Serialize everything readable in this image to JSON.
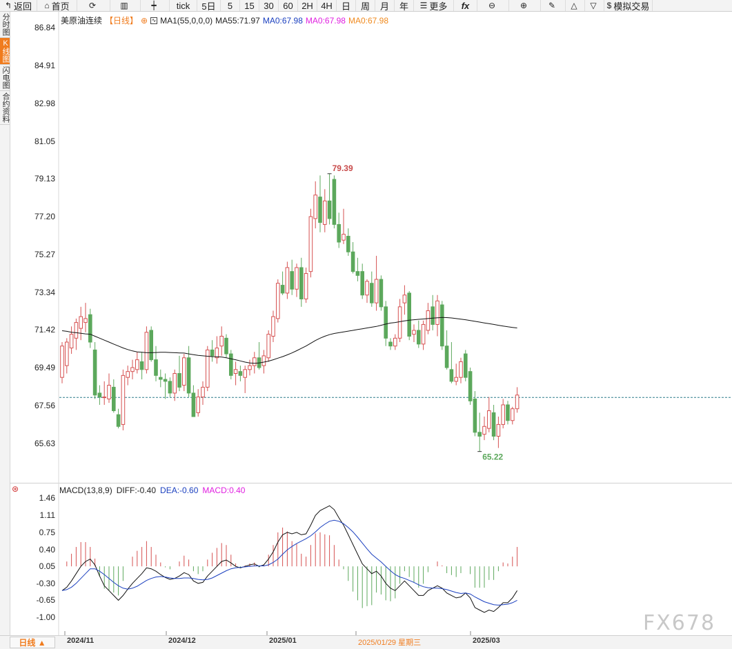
{
  "toolbar": [
    {
      "icon": "↰",
      "label": "返回",
      "name": "back-button",
      "w": 54
    },
    {
      "icon": "⌂",
      "label": "首页",
      "name": "home-button",
      "w": 58
    },
    {
      "icon": "⟳",
      "label": "",
      "name": "refresh-button",
      "w": 48
    },
    {
      "icon": "▥",
      "label": "",
      "name": "bar-chart-button",
      "w": 44
    },
    {
      "icon": "┿",
      "label": "",
      "name": "candlestick-button",
      "w": 42
    },
    {
      "icon": "",
      "label": "tick",
      "name": "period-tick",
      "w": 40
    },
    {
      "icon": "",
      "label": "5日",
      "name": "period-5day",
      "w": 34
    },
    {
      "icon": "",
      "label": "5",
      "name": "period-5min",
      "w": 28
    },
    {
      "icon": "",
      "label": "15",
      "name": "period-15min",
      "w": 28
    },
    {
      "icon": "",
      "label": "30",
      "name": "period-30min",
      "w": 28
    },
    {
      "icon": "",
      "label": "60",
      "name": "period-60min",
      "w": 28
    },
    {
      "icon": "",
      "label": "2H",
      "name": "period-2h",
      "w": 28
    },
    {
      "icon": "",
      "label": "4H",
      "name": "period-4h",
      "w": 28
    },
    {
      "icon": "",
      "label": "日",
      "name": "period-day",
      "w": 28
    },
    {
      "icon": "",
      "label": "周",
      "name": "period-week",
      "w": 28
    },
    {
      "icon": "",
      "label": "月",
      "name": "period-month",
      "w": 28
    },
    {
      "icon": "",
      "label": "年",
      "name": "period-year",
      "w": 28
    },
    {
      "icon": "☰",
      "label": "更多",
      "name": "more-button",
      "w": 58
    },
    {
      "icon": "",
      "label": "fx",
      "name": "formula-button",
      "w": 34
    },
    {
      "icon": "⊖",
      "label": "",
      "name": "zoom-out-button",
      "w": 46
    },
    {
      "icon": "⊕",
      "label": "",
      "name": "zoom-in-button",
      "w": 46
    },
    {
      "icon": "✎",
      "label": "",
      "name": "draw-button",
      "w": 36
    },
    {
      "icon": "△",
      "label": "",
      "name": "triangle-up-button",
      "w": 28
    },
    {
      "icon": "▽",
      "label": "",
      "name": "triangle-down-button",
      "w": 28
    },
    {
      "icon": "$",
      "label": "模拟交易",
      "name": "sim-trade-button",
      "w": 70
    }
  ],
  "sidetabs": [
    {
      "label": "分时图",
      "name": "tab-intraday",
      "active": false
    },
    {
      "label": "K线图",
      "name": "tab-kline",
      "active": true
    },
    {
      "label": "闪电图",
      "name": "tab-flash",
      "active": false
    },
    {
      "label": "合约资料",
      "name": "tab-contract",
      "active": false
    }
  ],
  "legend": {
    "symbol": "美原油连续",
    "period": "【日线】",
    "ma1": "MA1(55,0,0,0)",
    "ma55": "MA55:71.97",
    "ma0a": "MA0:67.98",
    "ma0b": "MA0:67.98",
    "ma0c": "MA0:67.98"
  },
  "macd_legend": {
    "name": "MACD(13,8,9)",
    "diff": "DIFF:-0.40",
    "dea": "DEA:-0.60",
    "macd": "MACD:0.40"
  },
  "bottom": {
    "period_btn": "日线 ▲"
  },
  "xlabels": [
    {
      "text": "2024/11",
      "hl": false
    },
    {
      "text": "2024/12",
      "hl": false
    },
    {
      "text": "2025/01",
      "hl": false
    },
    {
      "text": "2025/01/29  星期三",
      "hl": true
    },
    {
      "text": "2025/03",
      "hl": false
    }
  ],
  "watermark": "FX678",
  "colors": {
    "up": "#d65050",
    "down": "#5ca85c",
    "ma": "#111111",
    "dea": "#1a3fbf",
    "hline": "#2a7a8a",
    "accent": "#f07c1e"
  },
  "chart_data": [
    {
      "type": "candlestick",
      "title": "美原油连续",
      "ylim": [
        64.5,
        87.2
      ],
      "yticks": [
        86.84,
        84.91,
        82.98,
        81.05,
        79.13,
        77.2,
        75.27,
        73.34,
        71.42,
        69.49,
        67.56,
        65.63
      ],
      "last_price": 67.98,
      "high_label": "79.39",
      "low_label": "65.22",
      "ohlc": [
        [
          69.0,
          70.8,
          68.7,
          70.6
        ],
        [
          69.6,
          71.0,
          69.2,
          70.8
        ],
        [
          70.5,
          71.6,
          70.2,
          71.2
        ],
        [
          71.0,
          72.0,
          70.4,
          71.8
        ],
        [
          71.5,
          72.6,
          70.9,
          72.1
        ],
        [
          71.8,
          72.8,
          71.3,
          72.0
        ],
        [
          72.2,
          72.5,
          70.5,
          70.8
        ],
        [
          70.4,
          70.8,
          67.9,
          68.1
        ],
        [
          68.2,
          68.6,
          67.6,
          68.0
        ],
        [
          68.0,
          68.8,
          67.6,
          68.0
        ],
        [
          67.9,
          69.2,
          67.7,
          68.6
        ],
        [
          68.5,
          68.9,
          67.2,
          67.3
        ],
        [
          67.1,
          67.4,
          66.4,
          66.5
        ],
        [
          66.6,
          69.4,
          66.3,
          69.1
        ],
        [
          69.0,
          69.6,
          68.6,
          69.3
        ],
        [
          69.3,
          69.9,
          68.9,
          69.5
        ],
        [
          69.4,
          70.3,
          69.2,
          69.9
        ],
        [
          69.8,
          70.3,
          68.9,
          69.4
        ],
        [
          69.4,
          71.6,
          69.2,
          71.3
        ],
        [
          71.4,
          71.6,
          69.8,
          69.9
        ],
        [
          69.9,
          70.6,
          68.8,
          69.1
        ],
        [
          69.0,
          69.4,
          68.5,
          68.9
        ],
        [
          68.9,
          69.2,
          67.9,
          68.8
        ],
        [
          68.8,
          69.0,
          68.0,
          68.2
        ],
        [
          68.2,
          69.4,
          67.8,
          69.2
        ],
        [
          69.2,
          70.1,
          68.3,
          68.5
        ],
        [
          68.6,
          70.2,
          68.3,
          70.0
        ],
        [
          70.0,
          70.6,
          68.0,
          68.2
        ],
        [
          68.2,
          68.6,
          67.0,
          67.0
        ],
        [
          67.2,
          68.4,
          67.0,
          68.0
        ],
        [
          68.0,
          68.8,
          67.6,
          68.5
        ],
        [
          68.5,
          70.6,
          68.3,
          70.4
        ],
        [
          70.4,
          70.9,
          69.8,
          70.1
        ],
        [
          70.0,
          71.1,
          69.7,
          70.5
        ],
        [
          70.6,
          71.6,
          70.1,
          71.1
        ],
        [
          71.0,
          71.2,
          70.0,
          70.2
        ],
        [
          70.2,
          70.4,
          68.9,
          69.1
        ],
        [
          69.2,
          69.8,
          68.6,
          69.4
        ],
        [
          69.3,
          69.6,
          68.8,
          69.1
        ],
        [
          69.0,
          69.6,
          68.2,
          69.4
        ],
        [
          69.4,
          69.9,
          69.1,
          69.6
        ],
        [
          69.6,
          70.3,
          69.2,
          70.0
        ],
        [
          70.0,
          70.8,
          69.4,
          69.5
        ],
        [
          69.6,
          70.4,
          69.2,
          70.1
        ],
        [
          70.0,
          71.4,
          69.8,
          71.2
        ],
        [
          71.1,
          72.4,
          70.8,
          72.1
        ],
        [
          72.0,
          74.0,
          71.8,
          73.8
        ],
        [
          73.7,
          74.4,
          73.2,
          73.3
        ],
        [
          73.3,
          74.9,
          73.0,
          74.6
        ],
        [
          74.4,
          75.0,
          73.2,
          73.5
        ],
        [
          73.5,
          74.8,
          73.1,
          74.6
        ],
        [
          74.6,
          75.1,
          72.6,
          73.0
        ],
        [
          73.0,
          74.6,
          72.8,
          74.3
        ],
        [
          74.4,
          77.6,
          74.1,
          77.2
        ],
        [
          77.1,
          79.0,
          76.6,
          78.3
        ],
        [
          78.2,
          79.3,
          76.4,
          76.9
        ],
        [
          76.8,
          78.6,
          76.4,
          78.0
        ],
        [
          78.0,
          79.39,
          76.8,
          77.1
        ],
        [
          79.1,
          79.3,
          76.6,
          76.8
        ],
        [
          76.8,
          77.4,
          75.6,
          75.9
        ],
        [
          76.0,
          77.6,
          75.8,
          76.3
        ],
        [
          76.2,
          76.6,
          75.2,
          75.4
        ],
        [
          75.4,
          75.9,
          74.3,
          74.4
        ],
        [
          74.4,
          75.1,
          73.9,
          74.2
        ],
        [
          74.4,
          74.8,
          73.0,
          73.2
        ],
        [
          73.2,
          74.0,
          72.8,
          73.9
        ],
        [
          73.8,
          74.4,
          72.6,
          72.8
        ],
        [
          72.8,
          75.2,
          72.4,
          74.0
        ],
        [
          74.0,
          74.2,
          72.4,
          72.6
        ],
        [
          72.6,
          72.9,
          70.6,
          71.0
        ],
        [
          70.8,
          71.0,
          70.4,
          70.6
        ],
        [
          70.6,
          71.2,
          70.4,
          71.0
        ],
        [
          71.0,
          73.0,
          70.8,
          72.6
        ],
        [
          72.8,
          73.7,
          72.2,
          73.2
        ],
        [
          73.3,
          73.4,
          70.9,
          71.1
        ],
        [
          71.2,
          71.7,
          70.8,
          71.4
        ],
        [
          71.4,
          71.9,
          70.5,
          70.7
        ],
        [
          70.7,
          71.9,
          70.4,
          71.7
        ],
        [
          71.4,
          72.8,
          71.2,
          72.4
        ],
        [
          72.6,
          73.2,
          71.4,
          71.7
        ],
        [
          71.7,
          73.2,
          71.1,
          72.9
        ],
        [
          72.7,
          72.9,
          70.4,
          70.6
        ],
        [
          70.6,
          71.4,
          69.4,
          69.5
        ],
        [
          69.4,
          70.8,
          68.7,
          68.8
        ],
        [
          68.8,
          69.7,
          68.6,
          69.0
        ],
        [
          69.0,
          70.0,
          68.7,
          69.8
        ],
        [
          70.2,
          70.4,
          68.8,
          69.0
        ],
        [
          69.3,
          69.5,
          67.6,
          67.8
        ],
        [
          67.9,
          68.3,
          66.0,
          66.2
        ],
        [
          66.2,
          67.2,
          65.22,
          66.0
        ],
        [
          66.1,
          67.0,
          65.8,
          66.5
        ],
        [
          66.4,
          68.0,
          66.2,
          67.3
        ],
        [
          67.2,
          67.6,
          65.8,
          66.0
        ],
        [
          66.0,
          67.0,
          65.4,
          66.6
        ],
        [
          66.6,
          67.9,
          66.4,
          67.6
        ],
        [
          67.6,
          67.8,
          66.6,
          66.8
        ],
        [
          66.8,
          67.5,
          66.6,
          67.4
        ],
        [
          67.4,
          68.5,
          67.2,
          68.1
        ]
      ],
      "ma55": [
        71.38,
        71.35,
        71.3,
        71.28,
        71.25,
        71.22,
        71.2,
        71.1,
        71.0,
        70.9,
        70.8,
        70.7,
        70.6,
        70.5,
        70.42,
        70.35,
        70.3,
        70.28,
        70.26,
        70.26,
        70.27,
        70.28,
        70.28,
        70.27,
        70.26,
        70.25,
        70.24,
        70.2,
        70.16,
        70.12,
        70.1,
        70.08,
        70.06,
        70.05,
        70.04,
        70.0,
        69.95,
        69.9,
        69.84,
        69.78,
        69.74,
        69.72,
        69.74,
        69.78,
        69.83,
        69.9,
        69.98,
        70.06,
        70.15,
        70.25,
        70.36,
        70.48,
        70.6,
        70.74,
        70.88,
        71.0,
        71.1,
        71.18,
        71.24,
        71.28,
        71.32,
        71.36,
        71.4,
        71.44,
        71.48,
        71.52,
        71.56,
        71.6,
        71.66,
        71.72,
        71.77,
        71.8,
        71.84,
        71.88,
        71.92,
        71.94,
        71.96,
        71.98,
        72.0,
        72.02,
        72.04,
        72.06,
        72.05,
        72.03,
        72.0,
        71.97,
        71.94,
        71.9,
        71.86,
        71.82,
        71.78,
        71.74,
        71.7,
        71.66,
        71.62,
        71.58,
        71.55,
        71.52
      ]
    },
    {
      "type": "macd",
      "title": "MACD(13,8,9)",
      "ylim": [
        -1.25,
        1.6
      ],
      "yticks": [
        1.46,
        1.11,
        0.75,
        0.4,
        0.05,
        -0.3,
        -0.65,
        -1.0
      ],
      "diff": [
        -0.45,
        -0.38,
        -0.25,
        -0.1,
        0.05,
        0.15,
        0.2,
        0.08,
        -0.15,
        -0.35,
        -0.45,
        -0.55,
        -0.65,
        -0.55,
        -0.42,
        -0.3,
        -0.2,
        -0.1,
        0.02,
        0.0,
        -0.05,
        -0.12,
        -0.18,
        -0.22,
        -0.2,
        -0.15,
        -0.08,
        -0.12,
        -0.25,
        -0.3,
        -0.28,
        -0.15,
        -0.05,
        0.05,
        0.15,
        0.18,
        0.12,
        0.05,
        0.02,
        0.05,
        0.08,
        0.1,
        0.05,
        0.08,
        0.2,
        0.35,
        0.55,
        0.7,
        0.75,
        0.72,
        0.75,
        0.7,
        0.72,
        0.9,
        1.1,
        1.2,
        1.25,
        1.3,
        1.22,
        1.05,
        0.9,
        0.7,
        0.5,
        0.3,
        0.1,
        0.0,
        -0.1,
        -0.05,
        -0.15,
        -0.3,
        -0.4,
        -0.45,
        -0.35,
        -0.25,
        -0.35,
        -0.45,
        -0.55,
        -0.55,
        -0.45,
        -0.4,
        -0.35,
        -0.4,
        -0.5,
        -0.55,
        -0.6,
        -0.58,
        -0.5,
        -0.6,
        -0.8,
        -0.85,
        -0.9,
        -0.85,
        -0.88,
        -0.8,
        -0.7,
        -0.7,
        -0.6,
        -0.45
      ],
      "dea": [
        -0.45,
        -0.43,
        -0.38,
        -0.3,
        -0.2,
        -0.1,
        0.0,
        0.0,
        -0.05,
        -0.12,
        -0.2,
        -0.28,
        -0.35,
        -0.4,
        -0.42,
        -0.4,
        -0.36,
        -0.3,
        -0.24,
        -0.2,
        -0.17,
        -0.16,
        -0.17,
        -0.19,
        -0.2,
        -0.2,
        -0.19,
        -0.19,
        -0.2,
        -0.22,
        -0.23,
        -0.22,
        -0.19,
        -0.14,
        -0.09,
        -0.04,
        0.0,
        0.02,
        0.03,
        0.04,
        0.05,
        0.06,
        0.06,
        0.06,
        0.08,
        0.13,
        0.2,
        0.3,
        0.39,
        0.46,
        0.52,
        0.57,
        0.62,
        0.68,
        0.76,
        0.85,
        0.92,
        0.98,
        1.0,
        0.98,
        0.93,
        0.85,
        0.76,
        0.65,
        0.53,
        0.41,
        0.3,
        0.22,
        0.14,
        0.05,
        -0.04,
        -0.12,
        -0.17,
        -0.2,
        -0.24,
        -0.28,
        -0.33,
        -0.37,
        -0.39,
        -0.4,
        -0.4,
        -0.41,
        -0.43,
        -0.46,
        -0.49,
        -0.51,
        -0.5,
        -0.52,
        -0.58,
        -0.63,
        -0.68,
        -0.71,
        -0.74,
        -0.75,
        -0.74,
        -0.73,
        -0.7,
        -0.65
      ]
    }
  ]
}
